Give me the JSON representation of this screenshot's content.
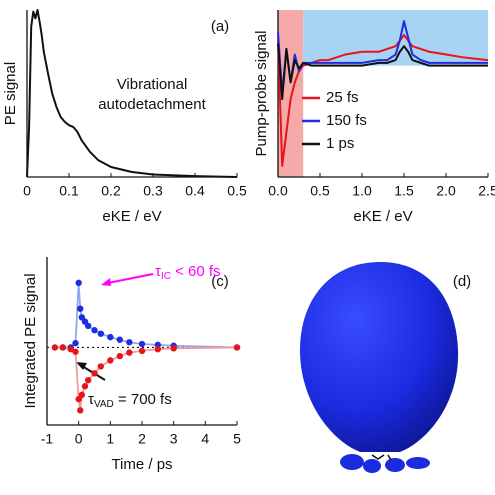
{
  "chart_data": [
    {
      "type": "line",
      "panel_label": "(a)",
      "xlabel": "eKE / eV",
      "ylabel": "PE signal",
      "annotation": "Vibrational autodetachment",
      "xlim": [
        0,
        0.5
      ],
      "xticks": [
        0,
        0.1,
        0.2,
        0.3,
        0.4,
        0.5
      ],
      "ylim": [
        0,
        1
      ],
      "series": [
        {
          "color": "#111111",
          "x": [
            0,
            0.005,
            0.01,
            0.015,
            0.02,
            0.025,
            0.03,
            0.035,
            0.04,
            0.05,
            0.06,
            0.07,
            0.08,
            0.09,
            0.1,
            0.11,
            0.12,
            0.13,
            0.15,
            0.17,
            0.2,
            0.25,
            0.3,
            0.4,
            0.5
          ],
          "values": [
            0,
            0.3,
            0.9,
            0.99,
            0.95,
            1.0,
            0.93,
            0.85,
            0.75,
            0.62,
            0.5,
            0.42,
            0.36,
            0.33,
            0.31,
            0.3,
            0.27,
            0.22,
            0.15,
            0.1,
            0.06,
            0.03,
            0.015,
            0.005,
            0
          ]
        }
      ]
    },
    {
      "type": "line",
      "panel_label": "(b)",
      "xlabel": "eKE / eV",
      "ylabel": "Pump-probe signal",
      "xlim": [
        0,
        2.5
      ],
      "xticks": [
        {
          "value": 0,
          "label": "0.0"
        },
        0.5,
        {
          "value": 1,
          "label": "1.0"
        },
        1.5,
        {
          "value": 2,
          "label": "2.0"
        },
        2.5
      ],
      "ylim": [
        -2,
        1
      ],
      "regions": [
        {
          "x": [
            0,
            0.3
          ],
          "y": [
            -2,
            1
          ],
          "color": "#f6a9a9"
        },
        {
          "x": [
            0.3,
            2.5
          ],
          "y": [
            0,
            1
          ],
          "color": "#a8d3f3"
        }
      ],
      "x": [
        0,
        0.05,
        0.1,
        0.15,
        0.2,
        0.25,
        0.3,
        0.4,
        0.5,
        0.6,
        0.8,
        1.0,
        1.2,
        1.3,
        1.4,
        1.45,
        1.5,
        1.55,
        1.6,
        1.7,
        1.8,
        2.0,
        2.2,
        2.5
      ],
      "series": [
        {
          "name": "25 fs",
          "color": "#e8141b",
          "values": [
            0.5,
            -1.8,
            -1.2,
            -0.6,
            -0.3,
            -0.1,
            0,
            0.05,
            0.1,
            0.1,
            0.2,
            0.25,
            0.25,
            0.3,
            0.35,
            0.45,
            0.55,
            0.45,
            0.35,
            0.3,
            0.25,
            0.2,
            0.15,
            0.1
          ]
        },
        {
          "name": "150 fs",
          "color": "#1d2ee0",
          "values": [
            0.6,
            -0.5,
            0.3,
            -0.3,
            0.2,
            -0.1,
            0.05,
            0.05,
            0.05,
            0.05,
            0.05,
            0.05,
            0.1,
            0.1,
            0.2,
            0.45,
            0.8,
            0.5,
            0.2,
            0.1,
            0.05,
            0.05,
            0.05,
            0.05
          ]
        },
        {
          "name": "1 ps",
          "color": "#111111",
          "values": [
            0.4,
            -0.6,
            0.3,
            -0.3,
            0.1,
            -0.05,
            0.05,
            0,
            0,
            0,
            0,
            0,
            0.05,
            0.05,
            0.1,
            0.25,
            0.35,
            0.25,
            0.1,
            0.05,
            0,
            0,
            0,
            0
          ]
        }
      ]
    },
    {
      "type": "scatter",
      "panel_label": "(c)",
      "xlabel": "Time / ps",
      "ylabel": "Integrated PE signal",
      "xlim": [
        -1,
        5
      ],
      "xticks": [
        -1,
        0,
        1,
        2,
        3,
        4,
        5
      ],
      "ylim": [
        -0.9,
        1.05
      ],
      "reference_line": 0,
      "annotations": [
        {
          "parts": [
            "τ",
            "IC",
            " < 60 fs"
          ],
          "color": "#ff00ff"
        },
        {
          "parts": [
            "τ",
            "VAD",
            " = 700 fs"
          ],
          "color": "#111111"
        }
      ],
      "series": [
        {
          "color": "#1d2ee0",
          "line_color": "#8fa6f0",
          "x": [
            -0.5,
            -0.25,
            -0.1,
            0,
            0.05,
            0.1,
            0.2,
            0.3,
            0.5,
            0.7,
            1.0,
            1.3,
            1.6,
            2.0,
            2.5,
            3.0,
            5.0
          ],
          "values": [
            0,
            0,
            0.05,
            0.75,
            0.45,
            0.35,
            0.3,
            0.25,
            0.2,
            0.16,
            0.12,
            0.09,
            0.06,
            0.04,
            0.03,
            0.02,
            0
          ]
        },
        {
          "color": "#e8141b",
          "line_color": "#f39a9a",
          "x": [
            -0.75,
            -0.5,
            -0.25,
            -0.1,
            0,
            0.05,
            0.1,
            0.2,
            0.3,
            0.5,
            0.7,
            1.0,
            1.3,
            1.6,
            2.0,
            2.5,
            3.0,
            5.0
          ],
          "values": [
            0,
            0,
            -0.02,
            -0.05,
            -0.6,
            -0.73,
            -0.55,
            -0.45,
            -0.38,
            -0.3,
            -0.22,
            -0.15,
            -0.1,
            -0.06,
            -0.04,
            -0.02,
            -0.01,
            0
          ]
        }
      ]
    },
    {
      "type": "surface",
      "panel_label": "(d)"
    }
  ]
}
